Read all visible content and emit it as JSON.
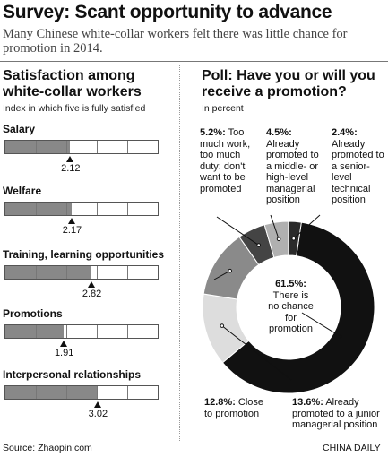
{
  "header": {
    "title": "Survey: Scant opportunity to advance",
    "subtitle": "Many Chinese white-collar workers felt there was little chance for promotion in 2014."
  },
  "satisfaction": {
    "title": "Satisfaction among white-collar workers",
    "note": "Index in which five is fully satisfied",
    "max": 5
  },
  "poll": {
    "title": "Poll: Have you or will you receive a promotion?",
    "note": "In percent"
  },
  "chart_data": [
    {
      "type": "bar",
      "title": "Satisfaction among white-collar workers",
      "categories": [
        "Salary",
        "Welfare",
        "Training, learning opportunities",
        "Promotions",
        "Interpersonal relationships"
      ],
      "values": [
        2.12,
        2.17,
        2.82,
        1.91,
        3.02
      ],
      "value_labels": [
        "2.12",
        "2.17",
        "2.82",
        "1.91",
        "3.02"
      ],
      "xlim": [
        0,
        5
      ]
    },
    {
      "type": "pie",
      "title": "Poll: Have you or will you receive a promotion?",
      "slices": [
        {
          "pct_label": "61.5%:",
          "value": 61.5,
          "text": "There is no chance for promotion",
          "color": "#111111"
        },
        {
          "pct_label": "13.6%:",
          "value": 13.6,
          "text": "Already promoted to a junior managerial position",
          "color": "#dddddd"
        },
        {
          "pct_label": "12.8%:",
          "value": 12.8,
          "text": "Close to promotion",
          "color": "#8a8a8a"
        },
        {
          "pct_label": "5.2%:",
          "value": 5.2,
          "text": "Too much work, too much duty: don't want to be promoted",
          "color": "#444444"
        },
        {
          "pct_label": "4.5%:",
          "value": 4.5,
          "text": "Already promoted to a middle- or high-level managerial position",
          "color": "#b0b0b0"
        },
        {
          "pct_label": "2.4%:",
          "value": 2.4,
          "text": "Already promoted to a senior-level technical position",
          "color": "#2a2a2a"
        }
      ]
    }
  ],
  "footer": {
    "source": "Source: Zhaopin.com",
    "credit": "CHINA DAILY"
  }
}
